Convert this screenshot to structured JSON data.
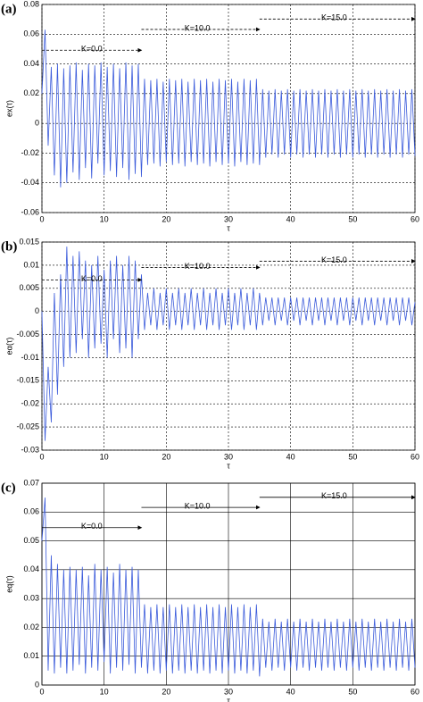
{
  "chart_data": [
    {
      "type": "line",
      "label": "(a)",
      "y_label": "ex(τ)",
      "x_label": "τ",
      "grid": "dashed",
      "annotations": [
        "K=0.0",
        "K=10.0",
        "K=15.0"
      ],
      "xlim": [
        0,
        60
      ],
      "xticks": [
        0,
        10,
        20,
        30,
        40,
        50,
        60
      ],
      "ylim": [
        -0.06,
        0.08
      ],
      "yticks": [
        -0.06,
        -0.04,
        -0.02,
        0,
        0.02,
        0.04,
        0.06,
        0.08
      ],
      "color": "#3b5bdb",
      "x": [
        0,
        0.5,
        1,
        1.5,
        2,
        2.5,
        3,
        3.5,
        4,
        4.5,
        5,
        5.5,
        6,
        6.5,
        7,
        7.5,
        8,
        8.5,
        9,
        9.5,
        10,
        10.5,
        11,
        11.5,
        12,
        12.5,
        13,
        13.5,
        14,
        14.5,
        15,
        15.5,
        16,
        16.5,
        17,
        17.5,
        18,
        18.5,
        19,
        19.5,
        20,
        20.5,
        21,
        21.5,
        22,
        22.5,
        23,
        23.5,
        24,
        24.5,
        25,
        25.5,
        26,
        26.5,
        27,
        27.5,
        28,
        28.5,
        29,
        29.5,
        30,
        30.5,
        31,
        31.5,
        32,
        32.5,
        33,
        33.5,
        34,
        34.5,
        35,
        35.5,
        36,
        36.5,
        37,
        37.5,
        38,
        38.5,
        39,
        39.5,
        40,
        40.5,
        41,
        41.5,
        42,
        42.5,
        43,
        43.5,
        44,
        44.5,
        45,
        45.5,
        46,
        46.5,
        47,
        47.5,
        48,
        48.5,
        49,
        49.5,
        50,
        50.5,
        51,
        51.5,
        52,
        52.5,
        53,
        53.5,
        54,
        54.5,
        55,
        55.5,
        56,
        56.5,
        57,
        57.5,
        58,
        58.5,
        59,
        59.5,
        60
      ],
      "values": [
        0.02,
        0.063,
        -0.015,
        0.038,
        -0.035,
        0.04,
        -0.043,
        0.037,
        -0.04,
        0.039,
        -0.033,
        0.041,
        -0.038,
        0.036,
        -0.03,
        0.04,
        -0.037,
        0.039,
        -0.027,
        0.041,
        -0.035,
        0.038,
        -0.032,
        0.04,
        -0.036,
        0.037,
        -0.03,
        0.041,
        -0.038,
        0.039,
        -0.034,
        0.04,
        -0.036,
        0.03,
        -0.028,
        0.029,
        -0.027,
        0.03,
        -0.029,
        0.028,
        -0.026,
        0.03,
        -0.028,
        0.029,
        -0.027,
        0.03,
        -0.029,
        0.028,
        -0.026,
        0.03,
        -0.028,
        0.029,
        -0.027,
        0.03,
        -0.029,
        0.028,
        -0.026,
        0.03,
        -0.028,
        0.029,
        -0.027,
        0.03,
        -0.029,
        0.028,
        -0.026,
        0.03,
        -0.028,
        0.029,
        -0.027,
        0.03,
        -0.028,
        0.023,
        -0.023,
        0.022,
        -0.021,
        0.023,
        -0.023,
        0.022,
        -0.021,
        0.023,
        -0.023,
        0.022,
        -0.021,
        0.023,
        -0.023,
        0.022,
        -0.021,
        0.023,
        -0.023,
        0.022,
        -0.021,
        0.023,
        -0.023,
        0.022,
        -0.021,
        0.023,
        -0.023,
        0.022,
        -0.021,
        0.023,
        -0.023,
        0.022,
        -0.021,
        0.023,
        -0.023,
        0.022,
        -0.021,
        0.023,
        -0.023,
        0.022,
        -0.021,
        0.023,
        -0.023,
        0.022,
        -0.021,
        0.023,
        -0.023,
        0.022,
        -0.021,
        0.023,
        -0.022
      ]
    },
    {
      "type": "line",
      "label": "(b)",
      "y_label": "eα(τ)",
      "x_label": "τ",
      "grid": "dashed",
      "annotations": [
        "K=0.0",
        "K=10.0",
        "K=15.0"
      ],
      "xlim": [
        0,
        60
      ],
      "xticks": [
        0,
        10,
        20,
        30,
        40,
        50,
        60
      ],
      "ylim": [
        -0.03,
        0.015
      ],
      "yticks": [
        -0.03,
        -0.025,
        -0.02,
        -0.015,
        -0.01,
        -0.005,
        0,
        0.005,
        0.01,
        0.015
      ],
      "color": "#3b5bdb",
      "x": [
        0,
        0.5,
        1,
        1.5,
        2,
        2.5,
        3,
        3.5,
        4,
        4.5,
        5,
        5.5,
        6,
        6.5,
        7,
        7.5,
        8,
        8.5,
        9,
        9.5,
        10,
        10.5,
        11,
        11.5,
        12,
        12.5,
        13,
        13.5,
        14,
        14.5,
        15,
        15.5,
        16,
        16.5,
        17,
        17.5,
        18,
        18.5,
        19,
        19.5,
        20,
        20.5,
        21,
        21.5,
        22,
        22.5,
        23,
        23.5,
        24,
        24.5,
        25,
        25.5,
        26,
        26.5,
        27,
        27.5,
        28,
        28.5,
        29,
        29.5,
        30,
        30.5,
        31,
        31.5,
        32,
        32.5,
        33,
        33.5,
        34,
        34.5,
        35,
        35.5,
        36,
        36.5,
        37,
        37.5,
        38,
        38.5,
        39,
        39.5,
        40,
        40.5,
        41,
        41.5,
        42,
        42.5,
        43,
        43.5,
        44,
        44.5,
        45,
        45.5,
        46,
        46.5,
        47,
        47.5,
        48,
        48.5,
        49,
        49.5,
        50,
        50.5,
        51,
        51.5,
        52,
        52.5,
        53,
        53.5,
        54,
        54.5,
        55,
        55.5,
        56,
        56.5,
        57,
        57.5,
        58,
        58.5,
        59,
        59.5,
        60
      ],
      "values": [
        0,
        -0.028,
        -0.012,
        -0.024,
        0.004,
        -0.018,
        0.008,
        -0.012,
        0.014,
        -0.01,
        0.012,
        -0.009,
        0.013,
        -0.006,
        0.011,
        -0.01,
        0.01,
        -0.008,
        0.012,
        -0.007,
        0.009,
        -0.01,
        0.011,
        -0.006,
        0.012,
        -0.009,
        0.01,
        -0.008,
        0.012,
        -0.01,
        0.011,
        -0.006,
        0.008,
        -0.004,
        0.004,
        -0.003,
        0.005,
        -0.004,
        0.004,
        -0.003,
        0.005,
        -0.004,
        0.004,
        -0.003,
        0.005,
        -0.004,
        0.004,
        -0.003,
        0.005,
        -0.004,
        0.004,
        -0.003,
        0.005,
        -0.004,
        0.004,
        -0.003,
        0.005,
        -0.004,
        0.004,
        -0.003,
        0.005,
        -0.004,
        0.004,
        -0.003,
        0.005,
        -0.004,
        0.004,
        -0.003,
        0.005,
        -0.004,
        0.004,
        -0.003,
        0.003,
        -0.002,
        0.003,
        -0.003,
        0.003,
        -0.002,
        0.003,
        -0.003,
        0.003,
        -0.002,
        0.003,
        -0.003,
        0.003,
        -0.002,
        0.003,
        -0.003,
        0.003,
        -0.002,
        0.003,
        -0.003,
        0.003,
        -0.002,
        0.003,
        -0.003,
        0.003,
        -0.002,
        0.003,
        -0.003,
        0.003,
        -0.002,
        0.003,
        -0.003,
        0.003,
        -0.002,
        0.003,
        -0.003,
        0.003,
        -0.002,
        0.003,
        -0.003,
        0.003,
        -0.002,
        0.003,
        -0.003,
        0.003,
        -0.002,
        0.003,
        -0.003,
        0.002
      ]
    },
    {
      "type": "line",
      "label": "(c)",
      "y_label": "eq(τ)",
      "x_label": "τ",
      "grid": "solid",
      "annotations": [
        "K=0.0",
        "K=10.0",
        "K=15.0"
      ],
      "xlim": [
        0,
        60
      ],
      "xticks": [
        0,
        10,
        20,
        30,
        40,
        50,
        60
      ],
      "ylim": [
        0,
        0.07
      ],
      "yticks": [
        0,
        0.01,
        0.02,
        0.03,
        0.04,
        0.05,
        0.06,
        0.07
      ],
      "color": "#3b5bdb",
      "x": [
        0,
        0.5,
        1,
        1.5,
        2,
        2.5,
        3,
        3.5,
        4,
        4.5,
        5,
        5.5,
        6,
        6.5,
        7,
        7.5,
        8,
        8.5,
        9,
        9.5,
        10,
        10.5,
        11,
        11.5,
        12,
        12.5,
        13,
        13.5,
        14,
        14.5,
        15,
        15.5,
        16,
        16.5,
        17,
        17.5,
        18,
        18.5,
        19,
        19.5,
        20,
        20.5,
        21,
        21.5,
        22,
        22.5,
        23,
        23.5,
        24,
        24.5,
        25,
        25.5,
        26,
        26.5,
        27,
        27.5,
        28,
        28.5,
        29,
        29.5,
        30,
        30.5,
        31,
        31.5,
        32,
        32.5,
        33,
        33.5,
        34,
        34.5,
        35,
        35.5,
        36,
        36.5,
        37,
        37.5,
        38,
        38.5,
        39,
        39.5,
        40,
        40.5,
        41,
        41.5,
        42,
        42.5,
        43,
        43.5,
        44,
        44.5,
        45,
        45.5,
        46,
        46.5,
        47,
        47.5,
        48,
        48.5,
        49,
        49.5,
        50,
        50.5,
        51,
        51.5,
        52,
        52.5,
        53,
        53.5,
        54,
        54.5,
        55,
        55.5,
        56,
        56.5,
        57,
        57.5,
        58,
        58.5,
        59,
        59.5,
        60
      ],
      "values": [
        0.05,
        0.065,
        0.005,
        0.045,
        0.004,
        0.042,
        0.006,
        0.04,
        0.004,
        0.041,
        0.005,
        0.04,
        0.007,
        0.041,
        0.004,
        0.038,
        0.006,
        0.042,
        0.005,
        0.04,
        0.008,
        0.041,
        0.004,
        0.039,
        0.006,
        0.042,
        0.005,
        0.04,
        0.007,
        0.041,
        0.004,
        0.04,
        0.006,
        0.028,
        0.004,
        0.027,
        0.005,
        0.028,
        0.004,
        0.027,
        0.005,
        0.028,
        0.004,
        0.027,
        0.005,
        0.028,
        0.004,
        0.027,
        0.005,
        0.028,
        0.004,
        0.027,
        0.005,
        0.028,
        0.004,
        0.027,
        0.005,
        0.028,
        0.004,
        0.027,
        0.005,
        0.028,
        0.004,
        0.027,
        0.005,
        0.028,
        0.004,
        0.027,
        0.005,
        0.028,
        0.003,
        0.023,
        0.006,
        0.022,
        0.005,
        0.023,
        0.006,
        0.022,
        0.005,
        0.023,
        0.006,
        0.022,
        0.005,
        0.023,
        0.006,
        0.022,
        0.005,
        0.023,
        0.006,
        0.022,
        0.005,
        0.023,
        0.006,
        0.022,
        0.005,
        0.023,
        0.006,
        0.022,
        0.005,
        0.023,
        0.006,
        0.022,
        0.005,
        0.023,
        0.006,
        0.022,
        0.005,
        0.023,
        0.006,
        0.022,
        0.005,
        0.023,
        0.006,
        0.022,
        0.005,
        0.023,
        0.006,
        0.022,
        0.005,
        0.023,
        0.006
      ]
    }
  ]
}
